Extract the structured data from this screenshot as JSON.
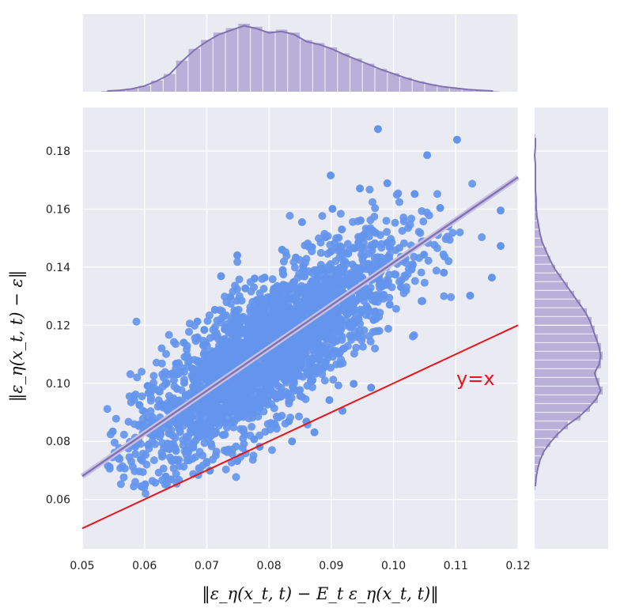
{
  "chart_data": {
    "type": "scatter",
    "title": "",
    "xlabel": "‖ε_η(x_t, t) − E_t ε_η(x_t, t)‖",
    "ylabel": "‖ε_η(x_t, t) − ε‖",
    "xlim": [
      0.05,
      0.12
    ],
    "ylim": [
      0.043,
      0.195
    ],
    "x_ticks": [
      "0.05",
      "0.06",
      "0.07",
      "0.08",
      "0.09",
      "0.10",
      "0.11",
      "0.12"
    ],
    "y_ticks": [
      "0.06",
      "0.08",
      "0.10",
      "0.12",
      "0.14",
      "0.16",
      "0.18"
    ],
    "grid": true,
    "background": "#eaeaf2",
    "point_color": "#6495ed",
    "fit_color": "#8172b3",
    "reference_color": "#e8151b",
    "reference_line": {
      "label": "y=x",
      "x": [
        0.05,
        0.12
      ],
      "y": [
        0.05,
        0.12
      ]
    },
    "regression_line": {
      "x": [
        0.05,
        0.12
      ],
      "y": [
        0.068,
        0.171
      ]
    },
    "marginal_x_hist": {
      "bins": [
        0.053,
        0.055,
        0.057,
        0.059,
        0.061,
        0.063,
        0.065,
        0.067,
        0.069,
        0.071,
        0.073,
        0.075,
        0.077,
        0.079,
        0.081,
        0.083,
        0.085,
        0.087,
        0.089,
        0.091,
        0.093,
        0.095,
        0.097,
        0.099,
        0.101,
        0.103,
        0.105,
        0.107,
        0.109,
        0.111,
        0.113,
        0.115,
        0.117
      ],
      "counts": [
        1,
        2,
        4,
        8,
        15,
        24,
        42,
        58,
        70,
        80,
        86,
        92,
        88,
        82,
        84,
        80,
        70,
        66,
        60,
        52,
        45,
        38,
        31,
        25,
        19,
        14,
        10,
        7,
        5,
        3,
        2,
        1
      ]
    },
    "marginal_y_hist": {
      "bins": [
        0.063,
        0.066,
        0.069,
        0.072,
        0.075,
        0.078,
        0.081,
        0.084,
        0.087,
        0.09,
        0.093,
        0.096,
        0.099,
        0.102,
        0.105,
        0.108,
        0.111,
        0.114,
        0.117,
        0.12,
        0.123,
        0.126,
        0.129,
        0.132,
        0.135,
        0.138,
        0.141,
        0.144,
        0.147,
        0.15,
        0.153,
        0.156,
        0.159,
        0.162,
        0.165,
        0.168,
        0.171,
        0.174,
        0.177,
        0.18,
        0.183,
        0.186
      ],
      "counts": [
        1,
        2,
        4,
        7,
        12,
        20,
        30,
        42,
        58,
        70,
        80,
        86,
        82,
        78,
        84,
        86,
        84,
        80,
        76,
        72,
        66,
        58,
        50,
        42,
        34,
        26,
        20,
        15,
        10,
        7,
        5,
        3,
        2,
        2,
        1,
        1,
        1,
        1,
        0,
        1,
        1
      ]
    },
    "points": [
      [
        0.0549,
        0.0834
      ],
      [
        0.0975,
        0.1876
      ],
      [
        0.1102,
        0.1839
      ],
      [
        0.1172,
        0.1595
      ],
      [
        0.1172,
        0.1473
      ],
      [
        0.1158,
        0.1364
      ],
      [
        0.1123,
        0.1302
      ],
      [
        0.1054,
        0.1786
      ],
      [
        0.0899,
        0.1716
      ],
      [
        0.0594,
        0.0738
      ],
      [
        0.0601,
        0.0652
      ],
      [
        0.0634,
        0.0679
      ],
      [
        0.0705,
        0.0699
      ],
      [
        0.0749,
        0.0732
      ],
      [
        0.0785,
        0.0781
      ],
      [
        0.0837,
        0.08
      ],
      [
        0.0873,
        0.0831
      ],
      [
        0.0605,
        0.0991
      ],
      [
        0.0592,
        0.0925
      ],
      [
        0.0663,
        0.114
      ],
      [
        0.0685,
        0.1213
      ],
      [
        0.0723,
        0.1369
      ],
      [
        0.0749,
        0.1441
      ],
      [
        0.0777,
        0.1361
      ],
      [
        0.0821,
        0.146
      ],
      [
        0.0853,
        0.1555
      ],
      [
        0.0902,
        0.1601
      ],
      [
        0.0946,
        0.1671
      ],
      [
        0.099,
        0.1689
      ],
      [
        0.1034,
        0.1652
      ],
      [
        0.1075,
        0.1604
      ],
      [
        0.1088,
        0.154
      ],
      [
        0.1049,
        0.1443
      ],
      [
        0.1081,
        0.1381
      ],
      [
        0.1012,
        0.1331
      ],
      [
        0.0964,
        0.0985
      ],
      [
        0.0936,
        0.0998
      ],
      [
        0.0918,
        0.0905
      ],
      [
        0.0897,
        0.0942
      ],
      [
        0.086,
        0.0868
      ],
      [
        0.0832,
        0.0869
      ],
      [
        0.0776,
        0.0807
      ],
      [
        0.0726,
        0.0822
      ],
      [
        0.0678,
        0.0779
      ],
      [
        0.064,
        0.0773
      ],
      [
        0.0625,
        0.0832
      ],
      [
        0.0613,
        0.0862
      ],
      [
        0.0628,
        0.0927
      ],
      [
        0.0646,
        0.1031
      ],
      [
        0.0668,
        0.1088
      ],
      [
        0.0696,
        0.1184
      ],
      [
        0.0713,
        0.1253
      ],
      [
        0.0738,
        0.1297
      ],
      [
        0.0762,
        0.1327
      ],
      [
        0.0793,
        0.1364
      ],
      [
        0.0822,
        0.139
      ],
      [
        0.0843,
        0.1433
      ],
      [
        0.0869,
        0.1469
      ],
      [
        0.0891,
        0.1503
      ],
      [
        0.0917,
        0.153
      ],
      [
        0.0947,
        0.1561
      ],
      [
        0.0968,
        0.1523
      ],
      [
        0.099,
        0.1484
      ],
      [
        0.1012,
        0.1436
      ],
      [
        0.1029,
        0.1392
      ],
      [
        0.0994,
        0.1271
      ],
      [
        0.0968,
        0.1218
      ],
      [
        0.0943,
        0.1164
      ],
      [
        0.0919,
        0.1118
      ],
      [
        0.0891,
        0.1071
      ],
      [
        0.0866,
        0.1027
      ],
      [
        0.0838,
        0.0987
      ],
      [
        0.0812,
        0.0948
      ],
      [
        0.0785,
        0.0917
      ],
      [
        0.0758,
        0.089
      ],
      [
        0.073,
        0.0863
      ],
      [
        0.0703,
        0.0855
      ],
      [
        0.0679,
        0.0851
      ],
      [
        0.0657,
        0.0871
      ],
      [
        0.0647,
        0.0928
      ],
      [
        0.0652,
        0.0981
      ]
    ]
  }
}
